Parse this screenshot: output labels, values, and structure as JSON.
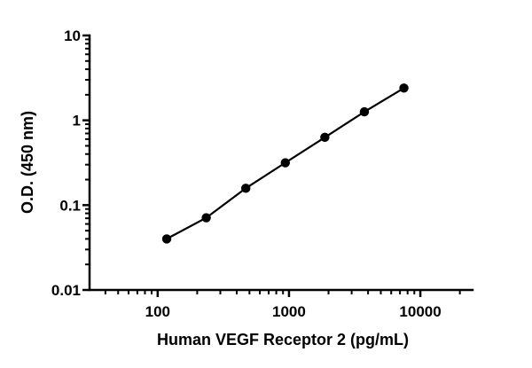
{
  "chart_data": {
    "type": "scatter",
    "title": "",
    "xlabel": "Human VEGF Receptor 2 (pg/mL)",
    "ylabel": "O.D. (450 nm)",
    "xscale": "log",
    "yscale": "log",
    "xlim": [
      31.25,
      25000
    ],
    "ylim": [
      0.01,
      10
    ],
    "x_ticks": [
      {
        "value": 100,
        "label": "100"
      },
      {
        "value": 1000,
        "label": "1000"
      },
      {
        "value": 10000,
        "label": "10000"
      }
    ],
    "y_ticks": [
      {
        "value": 0.01,
        "label": "0.01"
      },
      {
        "value": 0.1,
        "label": "0.1"
      },
      {
        "value": 1,
        "label": "1"
      },
      {
        "value": 10,
        "label": "10"
      }
    ],
    "grid": false,
    "legend": "none",
    "series": [
      {
        "x": [
          117.2,
          234.4,
          468.8,
          937.5,
          1875,
          3750,
          7500
        ],
        "y": [
          0.04,
          0.071,
          0.158,
          0.316,
          0.63,
          1.26,
          2.4
        ],
        "marker": "circle",
        "color": "#000000",
        "fit_line": true
      }
    ]
  }
}
